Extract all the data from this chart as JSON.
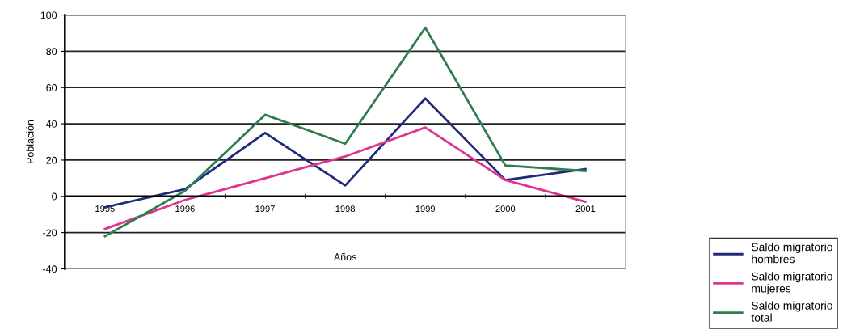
{
  "chart_data": {
    "type": "line",
    "xlabel": "Años",
    "ylabel": "Población",
    "categories": [
      "1995",
      "1996",
      "1997",
      "1998",
      "1999",
      "2000",
      "2001"
    ],
    "series": [
      {
        "name": "Saldo migratorio hombres",
        "color": "#1f2a7a",
        "values": [
          -6,
          4,
          35,
          6,
          54,
          9,
          15
        ]
      },
      {
        "name": "Saldo migratorio mujeres",
        "color": "#e0338f",
        "values": [
          -18,
          -2,
          10,
          22,
          38,
          9,
          -3
        ]
      },
      {
        "name": "Saldo migratorio total",
        "color": "#2e7d4f",
        "values": [
          -22,
          3,
          45,
          29,
          93,
          17,
          14
        ]
      }
    ],
    "ylim": [
      -40,
      100
    ],
    "yticks": [
      -40,
      -20,
      0,
      20,
      40,
      60,
      80,
      100
    ],
    "grid": "y",
    "legend": "bottom right",
    "marker": "none",
    "line_style": "solid"
  }
}
